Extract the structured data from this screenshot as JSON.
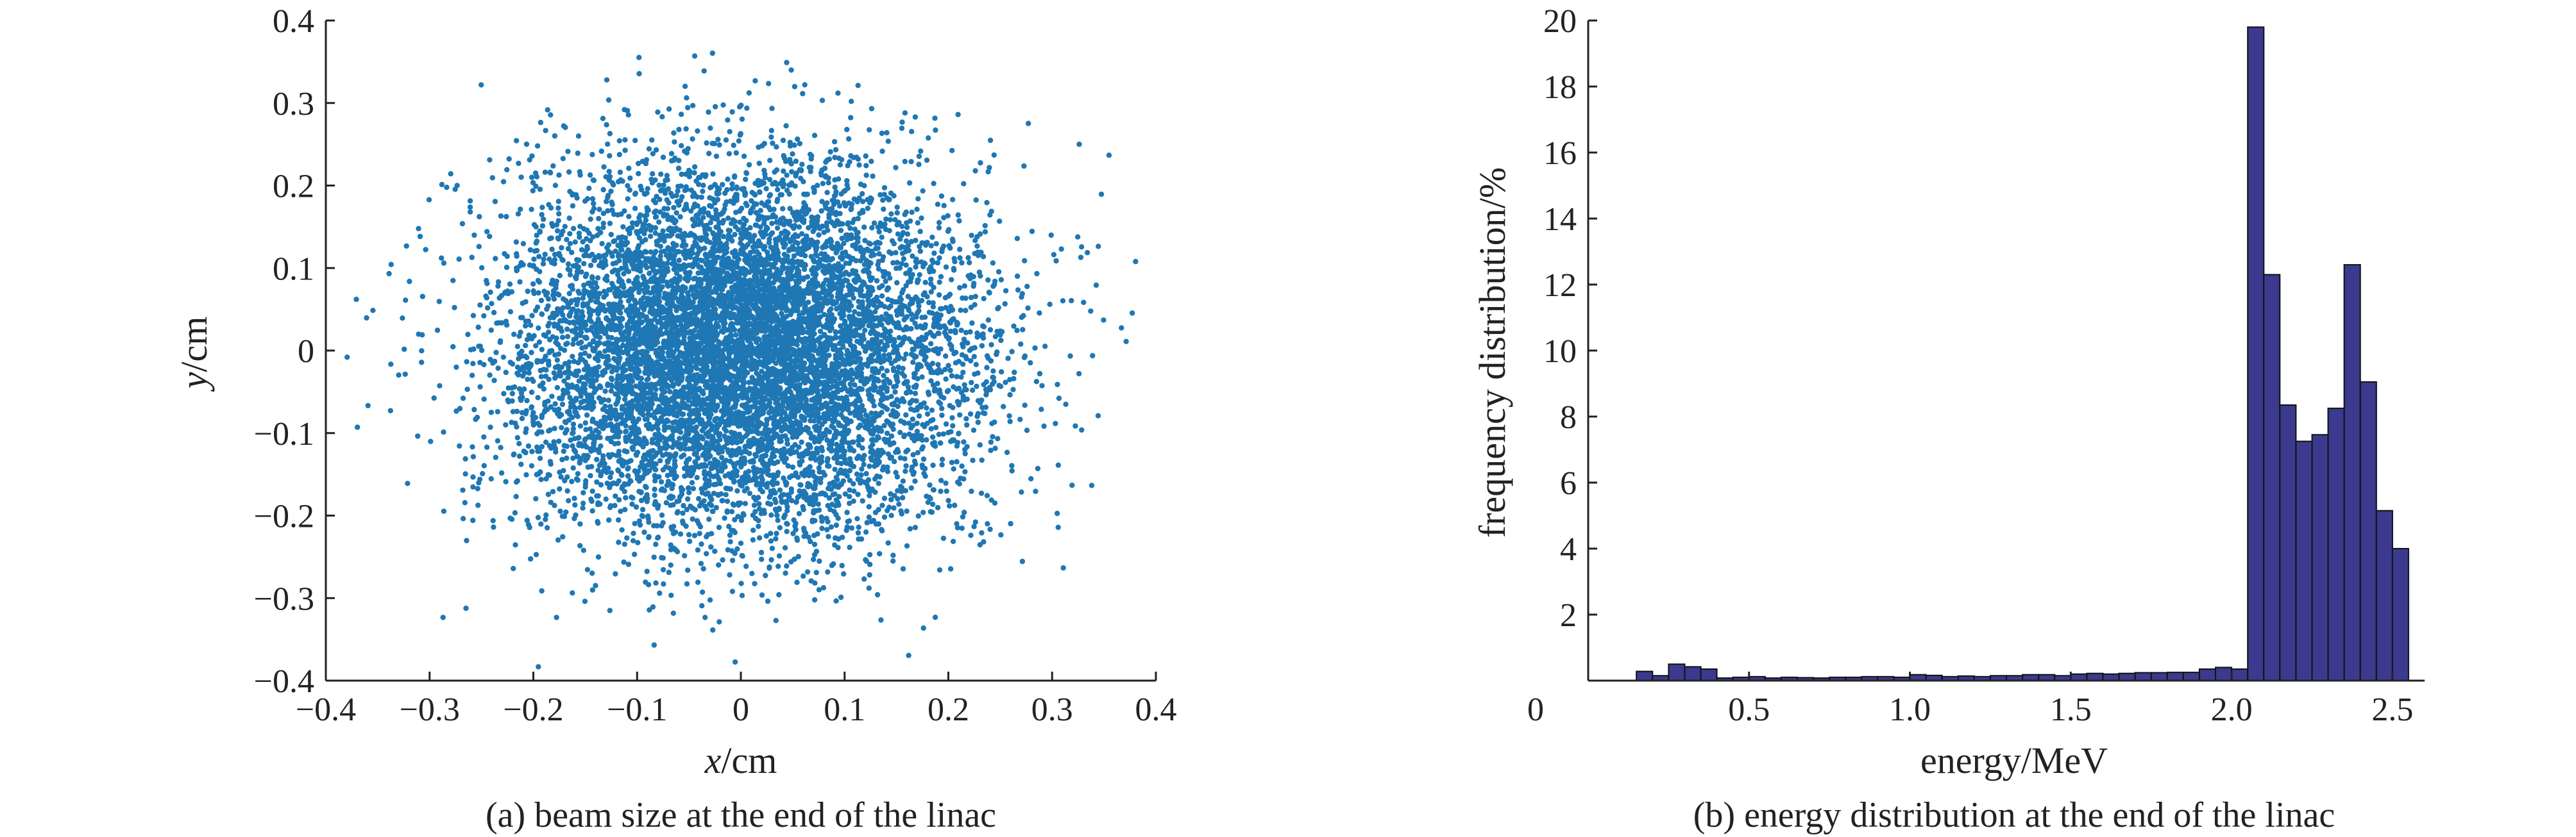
{
  "colors": {
    "scatter_point": "#1f77b4",
    "bar_fill": "#3b3a8e",
    "bar_edge": "#111111",
    "axis": "#222222"
  },
  "chart_data": [
    {
      "type": "scatter",
      "title": "",
      "caption": "(a) beam size at the end of the linac",
      "xlabel_var": "x",
      "xlabel_unit": "/cm",
      "ylabel_var": "y",
      "ylabel_unit": "/cm",
      "xlim": [
        -0.4,
        0.4
      ],
      "ylim": [
        -0.4,
        0.4
      ],
      "xticks": [
        -0.4,
        -0.3,
        -0.2,
        -0.1,
        0,
        0.1,
        0.2,
        0.3,
        0.4
      ],
      "xtick_labels": [
        "−0.4",
        "−0.3",
        "−0.2",
        "−0.1",
        "0",
        "0.1",
        "0.2",
        "0.3",
        "0.4"
      ],
      "yticks": [
        0.4,
        0.3,
        0.2,
        0.1,
        0,
        -0.1,
        -0.2,
        -0.3,
        -0.4
      ],
      "ytick_labels": [
        "0.4",
        "0.3",
        "0.2",
        "0.1",
        "0",
        "−0.1",
        "−0.2",
        "−0.3",
        "−0.4"
      ],
      "distribution": {
        "shape": "2D gaussian, dense core",
        "center": [
          0.0,
          0.0
        ],
        "sigma": [
          0.11,
          0.11
        ],
        "count": 9000
      },
      "grid": false
    },
    {
      "type": "bar",
      "title": "",
      "caption": "(b) energy distribution at the end of the linac",
      "xlabel": "energy/MeV",
      "ylabel": "frequency distribution/%",
      "xlim": [
        0,
        2.6
      ],
      "ylim": [
        0,
        20
      ],
      "xticks": [
        0,
        0.5,
        1.0,
        1.5,
        2.0,
        2.5
      ],
      "xtick_labels": [
        "0",
        "0.5",
        "1.0",
        "1.5",
        "2.0",
        "2.5"
      ],
      "yticks": [
        2,
        4,
        6,
        8,
        10,
        12,
        14,
        16,
        18,
        20
      ],
      "ytick_labels": [
        "2",
        "4",
        "6",
        "8",
        "10",
        "12",
        "14",
        "16",
        "18",
        "20"
      ],
      "bin_width": 0.05,
      "bin_starts": [
        0.15,
        0.2,
        0.25,
        0.3,
        0.35,
        0.4,
        0.45,
        0.5,
        0.55,
        0.6,
        0.65,
        0.7,
        0.75,
        0.8,
        0.85,
        0.9,
        0.95,
        1.0,
        1.05,
        1.1,
        1.15,
        1.2,
        1.25,
        1.3,
        1.35,
        1.4,
        1.45,
        1.5,
        1.55,
        1.6,
        1.65,
        1.7,
        1.75,
        1.8,
        1.85,
        1.9,
        1.95,
        2.0,
        2.05,
        2.1,
        2.15,
        2.2,
        2.25,
        2.3,
        2.35,
        2.4,
        2.45,
        2.5
      ],
      "values": [
        0.28,
        0.15,
        0.5,
        0.42,
        0.35,
        0.08,
        0.1,
        0.12,
        0.08,
        0.1,
        0.09,
        0.08,
        0.1,
        0.1,
        0.12,
        0.12,
        0.1,
        0.18,
        0.16,
        0.12,
        0.14,
        0.12,
        0.15,
        0.15,
        0.18,
        0.18,
        0.15,
        0.2,
        0.22,
        0.2,
        0.22,
        0.24,
        0.24,
        0.25,
        0.25,
        0.35,
        0.4,
        0.35,
        19.8,
        12.3,
        8.35,
        7.25,
        7.45,
        8.25,
        12.6,
        9.05,
        5.15,
        4.0
      ],
      "grid": false
    }
  ]
}
